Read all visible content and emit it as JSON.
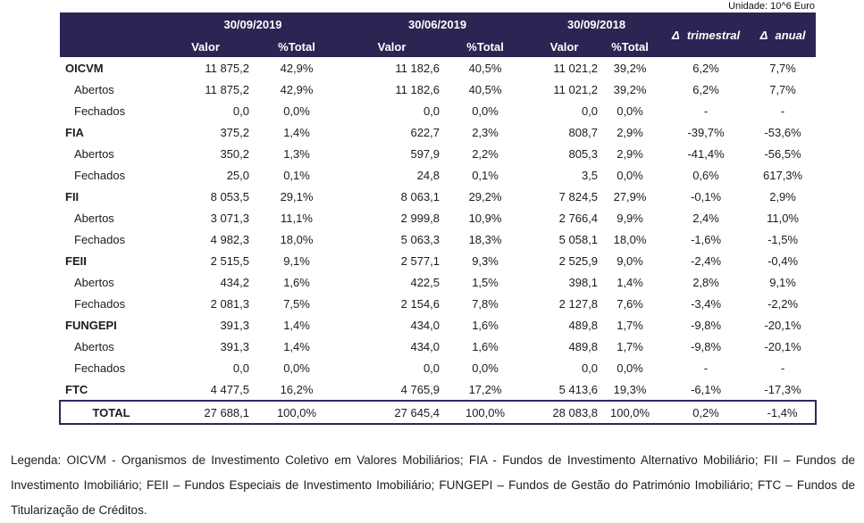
{
  "meta": {
    "unit_label": "Unidade: 10^6 Euro"
  },
  "table": {
    "period_headers": [
      "30/09/2019",
      "30/06/2019",
      "30/09/2018"
    ],
    "sub_headers": {
      "valor": "Valor",
      "ptotal": "%Total"
    },
    "delta_headers": [
      "Δ trimestral",
      "Δ anual"
    ],
    "rows": [
      {
        "label": "OICVM",
        "level": "category",
        "values": [
          "11 875,2",
          "42,9%",
          "11 182,6",
          "40,5%",
          "11 021,2",
          "39,2%",
          "6,2%",
          "7,7%"
        ]
      },
      {
        "label": "Abertos",
        "level": "sub",
        "values": [
          "11 875,2",
          "42,9%",
          "11 182,6",
          "40,5%",
          "11 021,2",
          "39,2%",
          "6,2%",
          "7,7%"
        ]
      },
      {
        "label": "Fechados",
        "level": "sub",
        "values": [
          "0,0",
          "0,0%",
          "0,0",
          "0,0%",
          "0,0",
          "0,0%",
          "-",
          "-"
        ]
      },
      {
        "label": "FIA",
        "level": "category",
        "values": [
          "375,2",
          "1,4%",
          "622,7",
          "2,3%",
          "808,7",
          "2,9%",
          "-39,7%",
          "-53,6%"
        ]
      },
      {
        "label": "Abertos",
        "level": "sub",
        "values": [
          "350,2",
          "1,3%",
          "597,9",
          "2,2%",
          "805,3",
          "2,9%",
          "-41,4%",
          "-56,5%"
        ]
      },
      {
        "label": "Fechados",
        "level": "sub",
        "values": [
          "25,0",
          "0,1%",
          "24,8",
          "0,1%",
          "3,5",
          "0,0%",
          "0,6%",
          "617,3%"
        ]
      },
      {
        "label": "FII",
        "level": "category",
        "values": [
          "8 053,5",
          "29,1%",
          "8 063,1",
          "29,2%",
          "7 824,5",
          "27,9%",
          "-0,1%",
          "2,9%"
        ]
      },
      {
        "label": "Abertos",
        "level": "sub",
        "values": [
          "3 071,3",
          "11,1%",
          "2 999,8",
          "10,9%",
          "2 766,4",
          "9,9%",
          "2,4%",
          "11,0%"
        ]
      },
      {
        "label": "Fechados",
        "level": "sub",
        "values": [
          "4 982,3",
          "18,0%",
          "5 063,3",
          "18,3%",
          "5 058,1",
          "18,0%",
          "-1,6%",
          "-1,5%"
        ]
      },
      {
        "label": "FEII",
        "level": "category",
        "values": [
          "2 515,5",
          "9,1%",
          "2 577,1",
          "9,3%",
          "2 525,9",
          "9,0%",
          "-2,4%",
          "-0,4%"
        ]
      },
      {
        "label": "Abertos",
        "level": "sub",
        "values": [
          "434,2",
          "1,6%",
          "422,5",
          "1,5%",
          "398,1",
          "1,4%",
          "2,8%",
          "9,1%"
        ]
      },
      {
        "label": "Fechados",
        "level": "sub",
        "values": [
          "2 081,3",
          "7,5%",
          "2 154,6",
          "7,8%",
          "2 127,8",
          "7,6%",
          "-3,4%",
          "-2,2%"
        ]
      },
      {
        "label": "FUNGEPI",
        "level": "category",
        "values": [
          "391,3",
          "1,4%",
          "434,0",
          "1,6%",
          "489,8",
          "1,7%",
          "-9,8%",
          "-20,1%"
        ]
      },
      {
        "label": "Abertos",
        "level": "sub",
        "values": [
          "391,3",
          "1,4%",
          "434,0",
          "1,6%",
          "489,8",
          "1,7%",
          "-9,8%",
          "-20,1%"
        ]
      },
      {
        "label": "Fechados",
        "level": "sub",
        "values": [
          "0,0",
          "0,0%",
          "0,0",
          "0,0%",
          "0,0",
          "0,0%",
          "-",
          "-"
        ]
      },
      {
        "label": "FTC",
        "level": "category",
        "values": [
          "4 477,5",
          "16,2%",
          "4 765,9",
          "17,2%",
          "5 413,6",
          "19,3%",
          "-6,1%",
          "-17,3%"
        ]
      }
    ],
    "total_row": {
      "label": "TOTAL",
      "values": [
        "27 688,1",
        "100,0%",
        "27 645,4",
        "100,0%",
        "28 083,8",
        "100,0%",
        "0,2%",
        "-1,4%"
      ]
    }
  },
  "legend": "Legenda: OICVM - Organismos de Investimento Coletivo em Valores Mobiliários; FIA - Fundos de Investimento Alternativo Mobiliário; FII – Fundos de Investimento Imobiliário; FEII – Fundos Especiais de Investimento Imobiliário; FUNGEPI – Fundos de Gestão do Património Imobiliário; FTC – Fundos de Titularização de Créditos.",
  "colors": {
    "header_bg": "#2a2552",
    "header_text": "#ffffff",
    "total_border": "#2e2860"
  }
}
